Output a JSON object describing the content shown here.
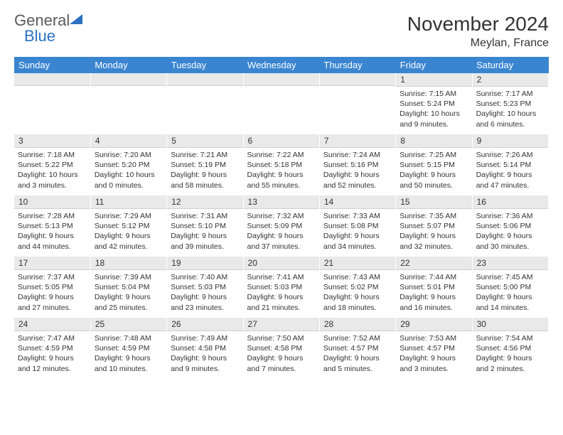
{
  "logo": {
    "line1": "General",
    "line2": "Blue"
  },
  "title": "November 2024",
  "subtitle": "Meylan, France",
  "colors": {
    "header_bg": "#3a85d0",
    "header_text": "#ffffff",
    "daynum_bg": "#e9e9e9",
    "text": "#333333",
    "logo_gray": "#5a5a5a",
    "logo_blue": "#2b72c2"
  },
  "day_headers": [
    "Sunday",
    "Monday",
    "Tuesday",
    "Wednesday",
    "Thursday",
    "Friday",
    "Saturday"
  ],
  "weeks": [
    [
      null,
      null,
      null,
      null,
      null,
      {
        "n": "1",
        "sunrise": "7:15 AM",
        "sunset": "5:24 PM",
        "daylight": "10 hours and 9 minutes."
      },
      {
        "n": "2",
        "sunrise": "7:17 AM",
        "sunset": "5:23 PM",
        "daylight": "10 hours and 6 minutes."
      }
    ],
    [
      {
        "n": "3",
        "sunrise": "7:18 AM",
        "sunset": "5:22 PM",
        "daylight": "10 hours and 3 minutes."
      },
      {
        "n": "4",
        "sunrise": "7:20 AM",
        "sunset": "5:20 PM",
        "daylight": "10 hours and 0 minutes."
      },
      {
        "n": "5",
        "sunrise": "7:21 AM",
        "sunset": "5:19 PM",
        "daylight": "9 hours and 58 minutes."
      },
      {
        "n": "6",
        "sunrise": "7:22 AM",
        "sunset": "5:18 PM",
        "daylight": "9 hours and 55 minutes."
      },
      {
        "n": "7",
        "sunrise": "7:24 AM",
        "sunset": "5:16 PM",
        "daylight": "9 hours and 52 minutes."
      },
      {
        "n": "8",
        "sunrise": "7:25 AM",
        "sunset": "5:15 PM",
        "daylight": "9 hours and 50 minutes."
      },
      {
        "n": "9",
        "sunrise": "7:26 AM",
        "sunset": "5:14 PM",
        "daylight": "9 hours and 47 minutes."
      }
    ],
    [
      {
        "n": "10",
        "sunrise": "7:28 AM",
        "sunset": "5:13 PM",
        "daylight": "9 hours and 44 minutes."
      },
      {
        "n": "11",
        "sunrise": "7:29 AM",
        "sunset": "5:12 PM",
        "daylight": "9 hours and 42 minutes."
      },
      {
        "n": "12",
        "sunrise": "7:31 AM",
        "sunset": "5:10 PM",
        "daylight": "9 hours and 39 minutes."
      },
      {
        "n": "13",
        "sunrise": "7:32 AM",
        "sunset": "5:09 PM",
        "daylight": "9 hours and 37 minutes."
      },
      {
        "n": "14",
        "sunrise": "7:33 AM",
        "sunset": "5:08 PM",
        "daylight": "9 hours and 34 minutes."
      },
      {
        "n": "15",
        "sunrise": "7:35 AM",
        "sunset": "5:07 PM",
        "daylight": "9 hours and 32 minutes."
      },
      {
        "n": "16",
        "sunrise": "7:36 AM",
        "sunset": "5:06 PM",
        "daylight": "9 hours and 30 minutes."
      }
    ],
    [
      {
        "n": "17",
        "sunrise": "7:37 AM",
        "sunset": "5:05 PM",
        "daylight": "9 hours and 27 minutes."
      },
      {
        "n": "18",
        "sunrise": "7:39 AM",
        "sunset": "5:04 PM",
        "daylight": "9 hours and 25 minutes."
      },
      {
        "n": "19",
        "sunrise": "7:40 AM",
        "sunset": "5:03 PM",
        "daylight": "9 hours and 23 minutes."
      },
      {
        "n": "20",
        "sunrise": "7:41 AM",
        "sunset": "5:03 PM",
        "daylight": "9 hours and 21 minutes."
      },
      {
        "n": "21",
        "sunrise": "7:43 AM",
        "sunset": "5:02 PM",
        "daylight": "9 hours and 18 minutes."
      },
      {
        "n": "22",
        "sunrise": "7:44 AM",
        "sunset": "5:01 PM",
        "daylight": "9 hours and 16 minutes."
      },
      {
        "n": "23",
        "sunrise": "7:45 AM",
        "sunset": "5:00 PM",
        "daylight": "9 hours and 14 minutes."
      }
    ],
    [
      {
        "n": "24",
        "sunrise": "7:47 AM",
        "sunset": "4:59 PM",
        "daylight": "9 hours and 12 minutes."
      },
      {
        "n": "25",
        "sunrise": "7:48 AM",
        "sunset": "4:59 PM",
        "daylight": "9 hours and 10 minutes."
      },
      {
        "n": "26",
        "sunrise": "7:49 AM",
        "sunset": "4:58 PM",
        "daylight": "9 hours and 9 minutes."
      },
      {
        "n": "27",
        "sunrise": "7:50 AM",
        "sunset": "4:58 PM",
        "daylight": "9 hours and 7 minutes."
      },
      {
        "n": "28",
        "sunrise": "7:52 AM",
        "sunset": "4:57 PM",
        "daylight": "9 hours and 5 minutes."
      },
      {
        "n": "29",
        "sunrise": "7:53 AM",
        "sunset": "4:57 PM",
        "daylight": "9 hours and 3 minutes."
      },
      {
        "n": "30",
        "sunrise": "7:54 AM",
        "sunset": "4:56 PM",
        "daylight": "9 hours and 2 minutes."
      }
    ]
  ],
  "labels": {
    "sunrise": "Sunrise:",
    "sunset": "Sunset:",
    "daylight": "Daylight:"
  }
}
